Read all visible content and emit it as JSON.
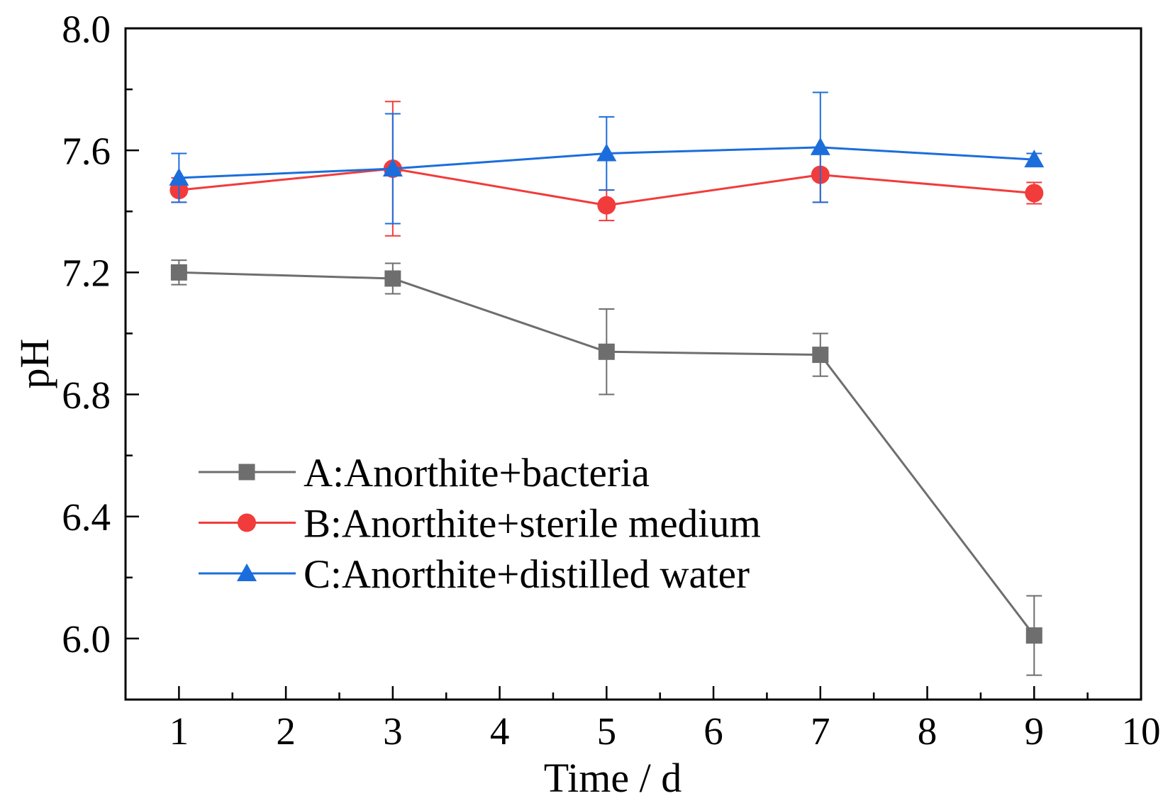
{
  "chart_data": {
    "type": "line",
    "xlabel": "Time / d",
    "ylabel": "pH",
    "xlim": [
      0.5,
      10
    ],
    "ylim": [
      5.8,
      8.0
    ],
    "x_ticks": [
      1,
      2,
      3,
      4,
      5,
      6,
      7,
      8,
      9,
      10
    ],
    "x_tick_labels": [
      "1",
      "2",
      "3",
      "4",
      "5",
      "6",
      "7",
      "8",
      "9",
      "10"
    ],
    "y_ticks": [
      6.0,
      6.4,
      6.8,
      7.2,
      7.6,
      8.0
    ],
    "y_tick_labels": [
      "6.0",
      "6.4",
      "6.8",
      "7.2",
      "7.6",
      "8.0"
    ],
    "grid": false,
    "legend_position": "lower-left",
    "x": [
      1,
      3,
      5,
      7,
      9
    ],
    "series": [
      {
        "name": "A:Anorthite+bacteria",
        "color": "#6e6e6e",
        "marker": "square",
        "values": [
          7.2,
          7.18,
          6.94,
          6.93,
          6.01
        ],
        "errors": [
          0.04,
          0.05,
          0.14,
          0.07,
          0.13
        ]
      },
      {
        "name": "B:Anorthite+sterile medium",
        "color": "#f23b3b",
        "marker": "circle",
        "values": [
          7.47,
          7.54,
          7.42,
          7.52,
          7.46
        ],
        "errors": [
          0.04,
          0.22,
          0.05,
          0.09,
          0.035
        ]
      },
      {
        "name": "C:Anorthite+distilled water",
        "color": "#1c6ddc",
        "marker": "triangle",
        "values": [
          7.51,
          7.54,
          7.59,
          7.61,
          7.57
        ],
        "errors": [
          0.08,
          0.18,
          0.12,
          0.18,
          0.02
        ]
      }
    ]
  }
}
